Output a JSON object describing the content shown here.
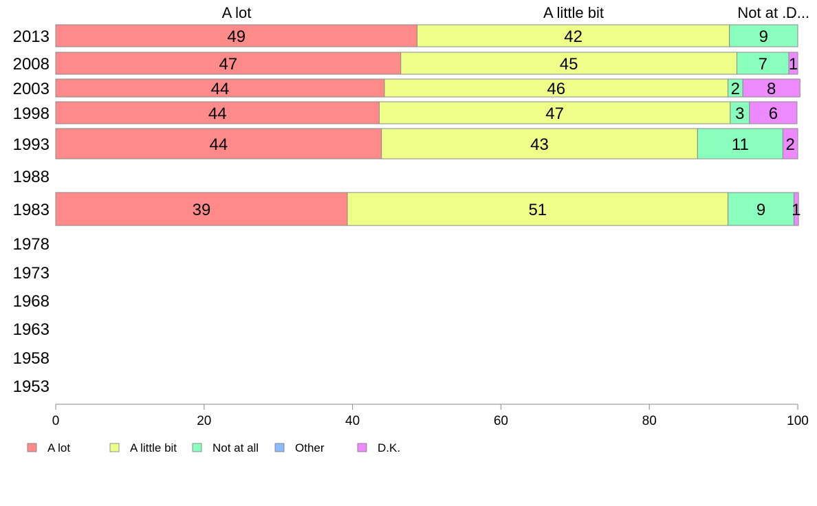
{
  "chart_data": {
    "type": "bar",
    "orientation": "horizontal",
    "stacked": true,
    "categories": [
      "2013",
      "2008",
      "2003",
      "1998",
      "1993",
      "1988",
      "1983",
      "1978",
      "1973",
      "1968",
      "1963",
      "1958",
      "1953"
    ],
    "series": [
      {
        "name": "A lot",
        "color": "#ff8a8a",
        "values": [
          48.7,
          46.5,
          44.3,
          43.6,
          43.9,
          null,
          39.3,
          null,
          null,
          null,
          null,
          null,
          null
        ],
        "labels": [
          "49",
          "47",
          "44",
          "44",
          "44",
          "",
          "39",
          "",
          "",
          "",
          "",
          "",
          ""
        ]
      },
      {
        "name": "A little bit",
        "color": "#eeff8a",
        "values": [
          42.1,
          45.3,
          46.3,
          47.3,
          42.6,
          null,
          51.3,
          null,
          null,
          null,
          null,
          null,
          null
        ],
        "labels": [
          "42",
          "45",
          "46",
          "47",
          "43",
          "",
          "51",
          "",
          "",
          "",
          "",
          "",
          ""
        ]
      },
      {
        "name": "Not at all",
        "color": "#8affbd",
        "values": [
          9.2,
          7.0,
          2.0,
          2.6,
          11.5,
          null,
          8.9,
          null,
          null,
          null,
          null,
          null,
          null
        ],
        "labels": [
          "9",
          "7",
          "2",
          "3",
          "11",
          "",
          "9",
          "",
          "",
          "",
          "",
          "",
          ""
        ]
      },
      {
        "name": "Other",
        "color": "#8abdff",
        "values": [
          0,
          0,
          0,
          0,
          0,
          null,
          0,
          null,
          null,
          null,
          null,
          null,
          null
        ],
        "labels": [
          "",
          "",
          "",
          "",
          "",
          "",
          "",
          "",
          "",
          "",
          "",
          "",
          ""
        ]
      },
      {
        "name": "D.K.",
        "color": "#ee8aff",
        "values": [
          0,
          1.2,
          7.7,
          6.4,
          2.0,
          null,
          0.6,
          null,
          null,
          null,
          null,
          null,
          null
        ],
        "labels": [
          "",
          "1",
          "8",
          "6",
          "2",
          "",
          "1",
          "",
          "",
          "",
          "",
          "",
          ""
        ]
      }
    ],
    "column_headers": [
      "A lot",
      "A little bit",
      "Not at ...",
      "D..."
    ],
    "xlim": [
      0,
      100
    ],
    "xticks": [
      0,
      20,
      40,
      60,
      80,
      100
    ],
    "grid": false,
    "legend": "bottom-left"
  }
}
